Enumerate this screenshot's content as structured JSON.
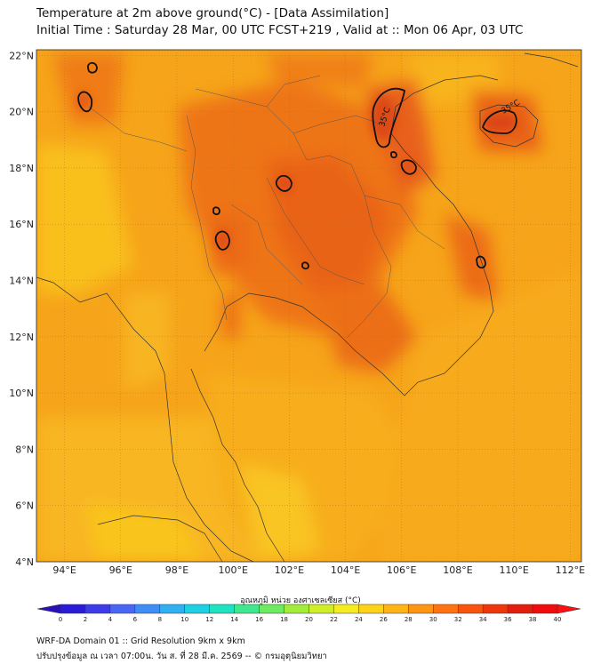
{
  "header": {
    "title_line1": "Temperature at 2m above ground(°C) - [Data Assimilation]",
    "title_line2": "Initial Time : Saturday 28 Mar, 00 UTC FCST+219 , Valid at :: Mon 06 Apr, 03 UTC"
  },
  "axes": {
    "lat_labels": [
      "22°N",
      "20°N",
      "18°N",
      "16°N",
      "14°N",
      "12°N",
      "10°N",
      "8°N",
      "6°N",
      "4°N"
    ],
    "lon_labels": [
      "94°E",
      "96°E",
      "98°E",
      "100°E",
      "102°E",
      "104°E",
      "106°E",
      "108°E",
      "110°E",
      "112°E"
    ]
  },
  "contour_labels": [
    "35°C",
    "35°C"
  ],
  "colorbar": {
    "title": "อุณหภูมิ หน่วย องศาเซลเซียส (°C)",
    "ticks": [
      "0",
      "2",
      "4",
      "6",
      "8",
      "10",
      "12",
      "14",
      "16",
      "18",
      "20",
      "22",
      "24",
      "26",
      "28",
      "30",
      "32",
      "34",
      "36",
      "38",
      "40"
    ],
    "colors": [
      "#2a1cd6",
      "#3d3ae8",
      "#4a66f4",
      "#3f8ef7",
      "#2fb0f2",
      "#1fcfe4",
      "#1ee2c0",
      "#3fe890",
      "#6eea60",
      "#a2ec3a",
      "#d0ee28",
      "#f4ec20",
      "#ffd21a",
      "#ffb515",
      "#ff9512",
      "#ff7410",
      "#f8540e",
      "#ee360c",
      "#e21e0c",
      "#f00c0c"
    ]
  },
  "colors": {
    "background_warm": "#f8a818",
    "hot": "#e85a10",
    "sea_yellow": "#f9c21f",
    "contour": "#111111"
  },
  "footer": {
    "line1": "WRF-DA Domain 01 :: Grid Resolution 9km x 9km",
    "line2": "ปรับปรุงข้อมูล ณ เวลา 07:00น. วัน ส. ที่ 28 มี.ค. 2569 -- © กรมอุตุนิยมวิทยา"
  }
}
